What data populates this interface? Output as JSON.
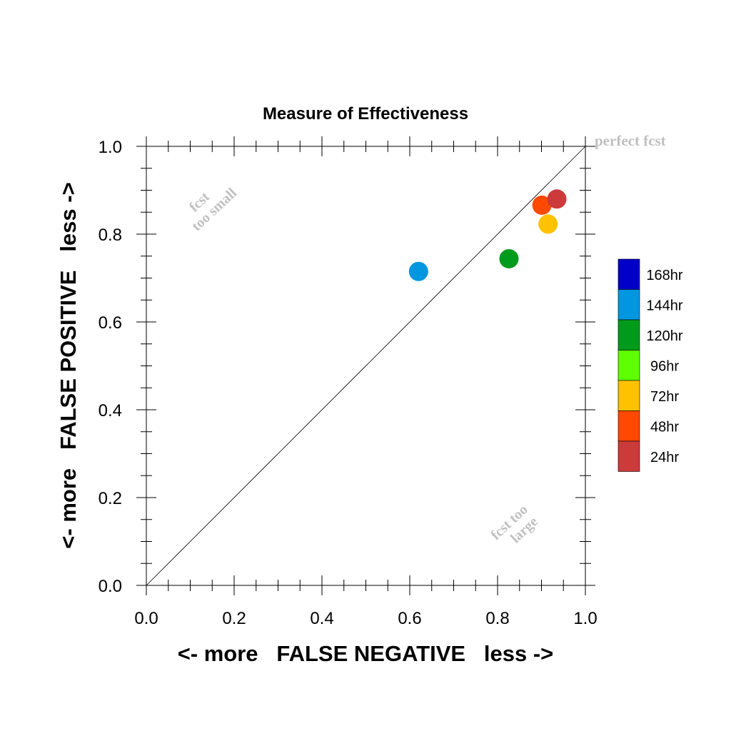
{
  "chart_data": {
    "type": "scatter",
    "title": "Measure of Effectiveness",
    "xlabel": "<- more   FALSE NEGATIVE   less ->",
    "ylabel": "<- more   FALSE POSITIVE   less ->",
    "xlim": [
      0.0,
      1.0
    ],
    "ylim": [
      0.0,
      1.0
    ],
    "x_ticks": [
      "0.0",
      "0.2",
      "0.4",
      "0.6",
      "0.8",
      "1.0"
    ],
    "y_ticks": [
      "0.0",
      "0.2",
      "0.4",
      "0.6",
      "0.8",
      "1.0"
    ],
    "grid": false,
    "legend_position": "right",
    "annotations": {
      "perfect": "perfect fcst",
      "too_small_1": "fcst",
      "too_small_2": "too small",
      "too_large_1": "fcst too",
      "too_large_2": "large"
    },
    "legend": [
      {
        "label": "168hr",
        "color": "#0000c8"
      },
      {
        "label": "144hr",
        "color": "#0097e0"
      },
      {
        "label": "120hr",
        "color": "#009a1c"
      },
      {
        "label": "96hr",
        "color": "#5eff00"
      },
      {
        "label": "72hr",
        "color": "#ffc200"
      },
      {
        "label": "48hr",
        "color": "#ff4800"
      },
      {
        "label": "24hr",
        "color": "#cc3a3a"
      }
    ],
    "series": [
      {
        "name": "144hr",
        "color": "#0097e0",
        "x": 0.62,
        "y": 0.715
      },
      {
        "name": "120hr",
        "color": "#009a1c",
        "x": 0.826,
        "y": 0.744
      },
      {
        "name": "72hr",
        "color": "#ffc200",
        "x": 0.915,
        "y": 0.823
      },
      {
        "name": "48hr",
        "color": "#ff4800",
        "x": 0.901,
        "y": 0.866
      },
      {
        "name": "24hr",
        "color": "#cc3a3a",
        "x": 0.935,
        "y": 0.88
      }
    ]
  }
}
